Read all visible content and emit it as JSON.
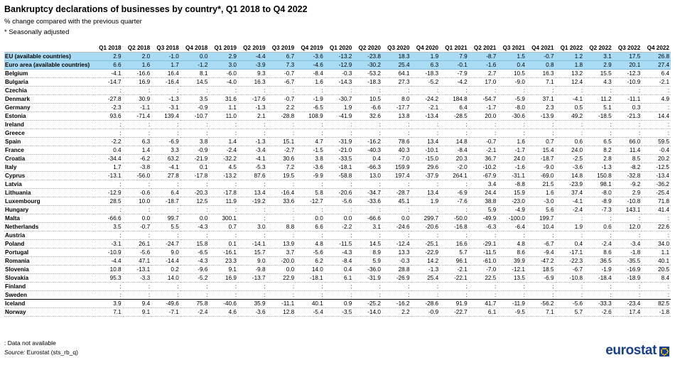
{
  "header": {
    "title": "Bankruptcy declarations of businesses by country*, Q1 2018 to Q4 2022",
    "subtitle": "% change compared with the previous quarter",
    "note": "* Seasonally adjusted"
  },
  "footer": {
    "na_note": ":  Data not available",
    "source_label": "Source:",
    "source_text": "Eurostat (sts_rb_q)",
    "logo_text": "eurostat"
  },
  "colors": {
    "aggregate_row_bg": "#a9dbf5",
    "logo": "#1a3f8f"
  },
  "chart_data": {
    "type": "table",
    "columns": [
      "Q1 2018",
      "Q2 2018",
      "Q3 2018",
      "Q4 2018",
      "Q1 2019",
      "Q2 2019",
      "Q3 2019",
      "Q4 2019",
      "Q1 2020",
      "Q2 2020",
      "Q3 2020",
      "Q4 2020",
      "Q1 2021",
      "Q2 2021",
      "Q3 2021",
      "Q4 2021",
      "Q1 2022",
      "Q2 2022",
      "Q3 2022",
      "Q4 2022"
    ],
    "rows": [
      {
        "label": "EU (available countries)",
        "aggregate": true,
        "values": [
          "2.9",
          "2.0",
          "-1.0",
          "0.0",
          "2.9",
          "-4.4",
          "6.7",
          "-3.6",
          "-13.2",
          "-23.8",
          "18.3",
          "1.9",
          "7.9",
          "-8.7",
          "1.5",
          "-0.7",
          "1.2",
          "3.1",
          "17.5",
          "26.8"
        ]
      },
      {
        "label": "Euro area (available countries)",
        "aggregate": true,
        "values": [
          "6.6",
          "1.6",
          "1.7",
          "-1.2",
          "3.0",
          "-3.9",
          "7.3",
          "-4.6",
          "-12.9",
          "-30.2",
          "25.4",
          "6.3",
          "-0.1",
          "-1.6",
          "0.4",
          "0.8",
          "1.8",
          "2.9",
          "20.1",
          "27.4"
        ]
      },
      {
        "label": "Belgium",
        "values": [
          "-4.1",
          "-16.6",
          "16.4",
          "8.1",
          "-6.0",
          "9.3",
          "-0.7",
          "-8.4",
          "-0.3",
          "-53.2",
          "64.1",
          "-18.3",
          "-7.9",
          "2.7",
          "10.5",
          "16.3",
          "13.2",
          "15.5",
          "-12.3",
          "6.4"
        ]
      },
      {
        "label": "Bulgaria",
        "values": [
          "-14.7",
          "16.9",
          "-16.4",
          "14.5",
          "-4.0",
          "16.3",
          "-6.7",
          "1.6",
          "-14.3",
          "-18.3",
          "27.3",
          "-5.2",
          "-4.2",
          "17.0",
          "-9.0",
          "7.1",
          "12.4",
          "4.3",
          "-10.9",
          "-2.1"
        ]
      },
      {
        "label": "Czechia",
        "values": [
          ":",
          ":",
          ":",
          ":",
          ":",
          ":",
          ":",
          ":",
          ":",
          ":",
          ":",
          ":",
          ":",
          ":",
          ":",
          ":",
          ":",
          ":",
          ":",
          ":"
        ]
      },
      {
        "label": "Denmark",
        "values": [
          "-27.8",
          "30.9",
          "-1.3",
          "3.5",
          "31.6",
          "-17.6",
          "-0.7",
          "-1.9",
          "-30.7",
          "10.5",
          "8.0",
          "-24.2",
          "184.8",
          "-54.7",
          "-5.9",
          "37.1",
          "-4.1",
          "11.2",
          "-11.1",
          "4.9"
        ]
      },
      {
        "label": "Germany",
        "values": [
          "-2.3",
          "-1.1",
          "-3.1",
          "-0.9",
          "1.1",
          "-1.3",
          "2.2",
          "-6.5",
          "1.9",
          "-6.6",
          "-17.7",
          "-2.1",
          "6.4",
          "-1.7",
          "-8.0",
          "2.3",
          "0.5",
          "5.1",
          "0.3",
          ":"
        ]
      },
      {
        "label": "Estonia",
        "values": [
          "93.6",
          "-71.4",
          "139.4",
          "-10.7",
          "11.0",
          "2.1",
          "-28.8",
          "108.9",
          "-41.9",
          "32.6",
          "13.8",
          "-13.4",
          "-28.5",
          "20.0",
          "-30.6",
          "-13.9",
          "49.2",
          "-18.5",
          "-21.3",
          "14.4"
        ]
      },
      {
        "label": "Ireland",
        "values": [
          ":",
          ":",
          ":",
          ":",
          ":",
          ":",
          ":",
          ":",
          ":",
          ":",
          ":",
          ":",
          ":",
          ":",
          ":",
          ":",
          ":",
          ":",
          ":",
          ":"
        ]
      },
      {
        "label": "Greece",
        "values": [
          ":",
          ":",
          ":",
          ":",
          ":",
          ":",
          ":",
          ":",
          ":",
          ":",
          ":",
          ":",
          ":",
          ":",
          ":",
          ":",
          ":",
          ":",
          ":",
          ":"
        ]
      },
      {
        "label": "Spain",
        "values": [
          "-2.2",
          "6.3",
          "-6.9",
          "3.8",
          "1.4",
          "-1.3",
          "15.1",
          "4.7",
          "-31.9",
          "-16.2",
          "78.6",
          "13.4",
          "14.8",
          "-0.7",
          "1.6",
          "0.7",
          "0.6",
          "6.5",
          "66.0",
          "59.5"
        ]
      },
      {
        "label": "France",
        "values": [
          "0.4",
          "1.4",
          "3.3",
          "-0.9",
          "-2.4",
          "-3.4",
          "-2.7",
          "-1.5",
          "-21.0",
          "-40.3",
          "40.3",
          "-10.1",
          "-8.4",
          "-2.1",
          "-1.7",
          "15.4",
          "24.0",
          "8.2",
          "11.4",
          "-0.4"
        ]
      },
      {
        "label": "Croatia",
        "values": [
          "-34.4",
          "-6.2",
          "63.2",
          "-21.9",
          "-32.2",
          "-4.1",
          "30.6",
          "3.8",
          "-33.5",
          "0.4",
          "-7.0",
          "-15.0",
          "20.3",
          "36.7",
          "24.0",
          "-18.7",
          "-2.5",
          "2.8",
          "8.5",
          "20.2"
        ]
      },
      {
        "label": "Italy",
        "values": [
          "1.7",
          "-3.8",
          "-4.1",
          "0.1",
          "4.5",
          "-5.3",
          "7.2",
          "-3.6",
          "-18.1",
          "-66.3",
          "159.9",
          "29.6",
          "-2.0",
          "-10.2",
          "-1.6",
          "-9.0",
          "-3.6",
          "-1.3",
          "-8.2",
          "-12.5"
        ]
      },
      {
        "label": "Cyprus",
        "values": [
          "-13.1",
          "-56.0",
          "27.8",
          "-17.8",
          "-13.2",
          "87.6",
          "19.5",
          "-9.9",
          "-58.8",
          "13.0",
          "197.4",
          "-37.9",
          "264.1",
          "-67.9",
          "-31.1",
          "-69.0",
          "14.8",
          "150.8",
          "-32.8",
          "-13.4"
        ]
      },
      {
        "label": "Latvia",
        "values": [
          ":",
          ":",
          ":",
          ":",
          ":",
          ":",
          ":",
          ":",
          ":",
          ":",
          ":",
          ":",
          ":",
          "3.4",
          "-8.8",
          "21.5",
          "-23.9",
          "98.1",
          "-9.2",
          "-36.2"
        ]
      },
      {
        "label": "Lithuania",
        "values": [
          "-12.9",
          "-0.6",
          "6.4",
          "-20.3",
          "-17.8",
          "13.4",
          "-16.4",
          "5.8",
          "-20.6",
          "-34.7",
          "-28.7",
          "13.4",
          "-6.9",
          "24.4",
          "15.9",
          "1.6",
          "37.4",
          "-8.0",
          "2.9",
          "-25.4"
        ]
      },
      {
        "label": "Luxembourg",
        "values": [
          "28.5",
          "10.0",
          "-18.7",
          "12.5",
          "11.9",
          "-19.2",
          "33.6",
          "-12.7",
          "-5.6",
          "-33.6",
          "45.1",
          "1.9",
          "-7.6",
          "38.8",
          "-23.0",
          "-3.0",
          "-4.1",
          "-8.9",
          "-10.8",
          "71.8"
        ]
      },
      {
        "label": "Hungary",
        "values": [
          ":",
          ":",
          ":",
          ":",
          ":",
          ":",
          ":",
          ":",
          ":",
          ":",
          ":",
          ":",
          ":",
          "5.9",
          "-4.9",
          "5.6",
          "-2.4",
          "-7.3",
          "143.1",
          "41.4"
        ]
      },
      {
        "label": "Malta",
        "values": [
          "-66.6",
          "0.0",
          "99.7",
          "0.0",
          "300.1",
          ":",
          ":",
          "0.0",
          "0.0",
          "-66.6",
          "0.0",
          "299.7",
          "-50.0",
          "-49.9",
          "-100.0",
          "199.7",
          ":",
          ":",
          ":",
          ":"
        ]
      },
      {
        "label": "Netherlands",
        "values": [
          "3.5",
          "-0.7",
          "5.5",
          "-4.3",
          "0.7",
          "3.0",
          "8.8",
          "6.6",
          "-2.2",
          "3.1",
          "-24.6",
          "-20.6",
          "-16.8",
          "-6.3",
          "-6.4",
          "10.4",
          "1.9",
          "0.6",
          "12.0",
          "22.6"
        ]
      },
      {
        "label": "Austria",
        "values": [
          ":",
          ":",
          ":",
          ":",
          ":",
          ":",
          ":",
          ":",
          ":",
          ":",
          ":",
          ":",
          ":",
          ":",
          ":",
          ":",
          ":",
          ":",
          ":",
          ":"
        ]
      },
      {
        "label": "Poland",
        "values": [
          "-3.1",
          "26.1",
          "-24.7",
          "15.8",
          "0.1",
          "-14.1",
          "13.9",
          "4.8",
          "-11.5",
          "14.5",
          "-12.4",
          "-25.1",
          "16.6",
          "-29.1",
          "4.8",
          "-6.7",
          "0.4",
          "-2.4",
          "-3.4",
          "34.0"
        ]
      },
      {
        "label": "Portugal",
        "values": [
          "-10.9",
          "-5.6",
          "9.0",
          "-6.5",
          "-16.1",
          "15.7",
          "3.7",
          "-5.6",
          "-4.3",
          "8.9",
          "13.3",
          "-22.9",
          "5.7",
          "-11.5",
          "8.6",
          "-9.4",
          "-17.1",
          "8.6",
          "-1.8",
          "1.1"
        ]
      },
      {
        "label": "Romania",
        "values": [
          "-4.4",
          "47.1",
          "-14.4",
          "-4.3",
          "23.3",
          "9.0",
          "-20.0",
          "6.2",
          "-8.4",
          "5.9",
          "-0.3",
          "14.2",
          "96.1",
          "-61.0",
          "39.9",
          "-47.2",
          "-22.3",
          "36.5",
          "-35.5",
          "40.1"
        ]
      },
      {
        "label": "Slovenia",
        "values": [
          "10.8",
          "-13.1",
          "0.2",
          "-9.6",
          "9.1",
          "-9.8",
          "0.0",
          "14.0",
          "0.4",
          "-36.0",
          "28.8",
          "-1.3",
          "-2.1",
          "-7.0",
          "-12.1",
          "18.5",
          "-6.7",
          "-1.9",
          "-16.9",
          "20.5"
        ]
      },
      {
        "label": "Slovakia",
        "values": [
          "95.3",
          "-3.3",
          "14.0",
          "-5.2",
          "16.9",
          "-13.7",
          "22.9",
          "-18.1",
          "6.1",
          "-31.9",
          "-26.9",
          "25.4",
          "-22.1",
          "22.5",
          "13.5",
          "-6.9",
          "-10.8",
          "-18.4",
          "-18.9",
          "8.4"
        ]
      },
      {
        "label": "Finland",
        "values": [
          ":",
          ":",
          ":",
          ":",
          ":",
          ":",
          ":",
          ":",
          ":",
          ":",
          ":",
          ":",
          ":",
          ":",
          ":",
          ":",
          ":",
          ":",
          ":",
          ":"
        ]
      },
      {
        "label": "Sweden",
        "values": [
          ":",
          ":",
          ":",
          ":",
          ":",
          ":",
          ":",
          ":",
          ":",
          ":",
          ":",
          ":",
          ":",
          ":",
          ":",
          ":",
          ":",
          ":",
          ":",
          ":"
        ]
      },
      {
        "label": "Iceland",
        "separator": true,
        "values": [
          "3.9",
          "9.4",
          "-49.6",
          "75.8",
          "-40.6",
          "35.9",
          "-11.1",
          "40.1",
          "0.9",
          "-25.2",
          "-16.2",
          "-28.6",
          "91.9",
          "41.7",
          "-11.9",
          "-56.2",
          "-5.6",
          "-33.3",
          "-23.4",
          "82.5"
        ]
      },
      {
        "label": "Norway",
        "values": [
          "7.1",
          "9.1",
          "-7.1",
          "-2.4",
          "4.6",
          "-3.6",
          "12.8",
          "-5.4",
          "-3.5",
          "-14.0",
          "2.2",
          "-0.9",
          "-22.7",
          "6.1",
          "-9.5",
          "7.1",
          "5.7",
          "-2.6",
          "17.4",
          "-1.8"
        ]
      }
    ]
  }
}
